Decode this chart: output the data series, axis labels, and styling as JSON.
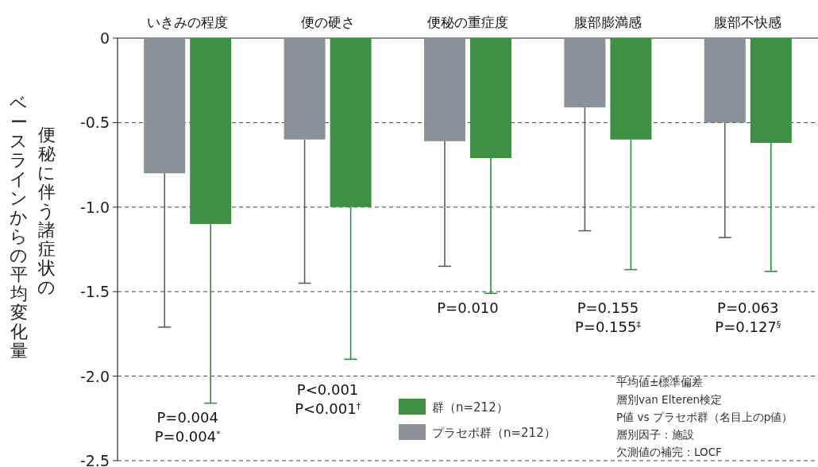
{
  "chart_data": {
    "type": "bar",
    "ylabel": "便秘に伴う諸症状のベースラインからの平均変化量",
    "categories": [
      "いきみの程度",
      "便の硬さ",
      "便秘の重症度",
      "腹部膨満感",
      "腹部不快感"
    ],
    "series": [
      {
        "name": "プラセボ群（n=212）",
        "color": "#8b9199",
        "values": [
          -0.8,
          -0.6,
          -0.61,
          -0.41,
          -0.5
        ],
        "errors": [
          [
            -1.71,
            -0.8
          ],
          [
            -1.45,
            -0.6
          ],
          [
            -1.35,
            -0.61
          ],
          [
            -1.14,
            -0.41
          ],
          [
            -1.18,
            -0.5
          ]
        ]
      },
      {
        "name": "群（n=212）",
        "color": "#3f8f45",
        "values": [
          -1.1,
          -1.0,
          -0.71,
          -0.6,
          -0.62
        ],
        "errors": [
          [
            -2.16,
            -1.1
          ],
          [
            -1.9,
            -1.0
          ],
          [
            -1.51,
            -0.71
          ],
          [
            -1.37,
            -0.6
          ],
          [
            -1.38,
            -0.62
          ]
        ]
      }
    ],
    "ylim": [
      -2.5,
      0
    ],
    "yticks": [
      {
        "value": 0,
        "label": "0"
      },
      {
        "value": -0.5,
        "label": "-0.5"
      },
      {
        "value": -1.0,
        "label": "-1.0"
      },
      {
        "value": -1.5,
        "label": "-1.5"
      },
      {
        "value": -2.0,
        "label": "-2.0"
      },
      {
        "value": -2.5,
        "label": "-2.5"
      }
    ],
    "grid": "y",
    "legend": "bottom",
    "annotations": [
      "P=0.004",
      "P=0.004$^{*}$",
      "P<0.001",
      "P<0.001$^{†}$",
      "P=0.010",
      "P=0.155",
      "P=0.155$^{‡}$",
      "P=0.063",
      "P=0.127$^{§}$",
      "平均値±標準偏差",
      "層別van Elteren検定",
      "P値 vs プラセボ群（名目上のp値）",
      "層別因子：施設",
      "欠測値の補完：LOCF"
    ]
  }
}
